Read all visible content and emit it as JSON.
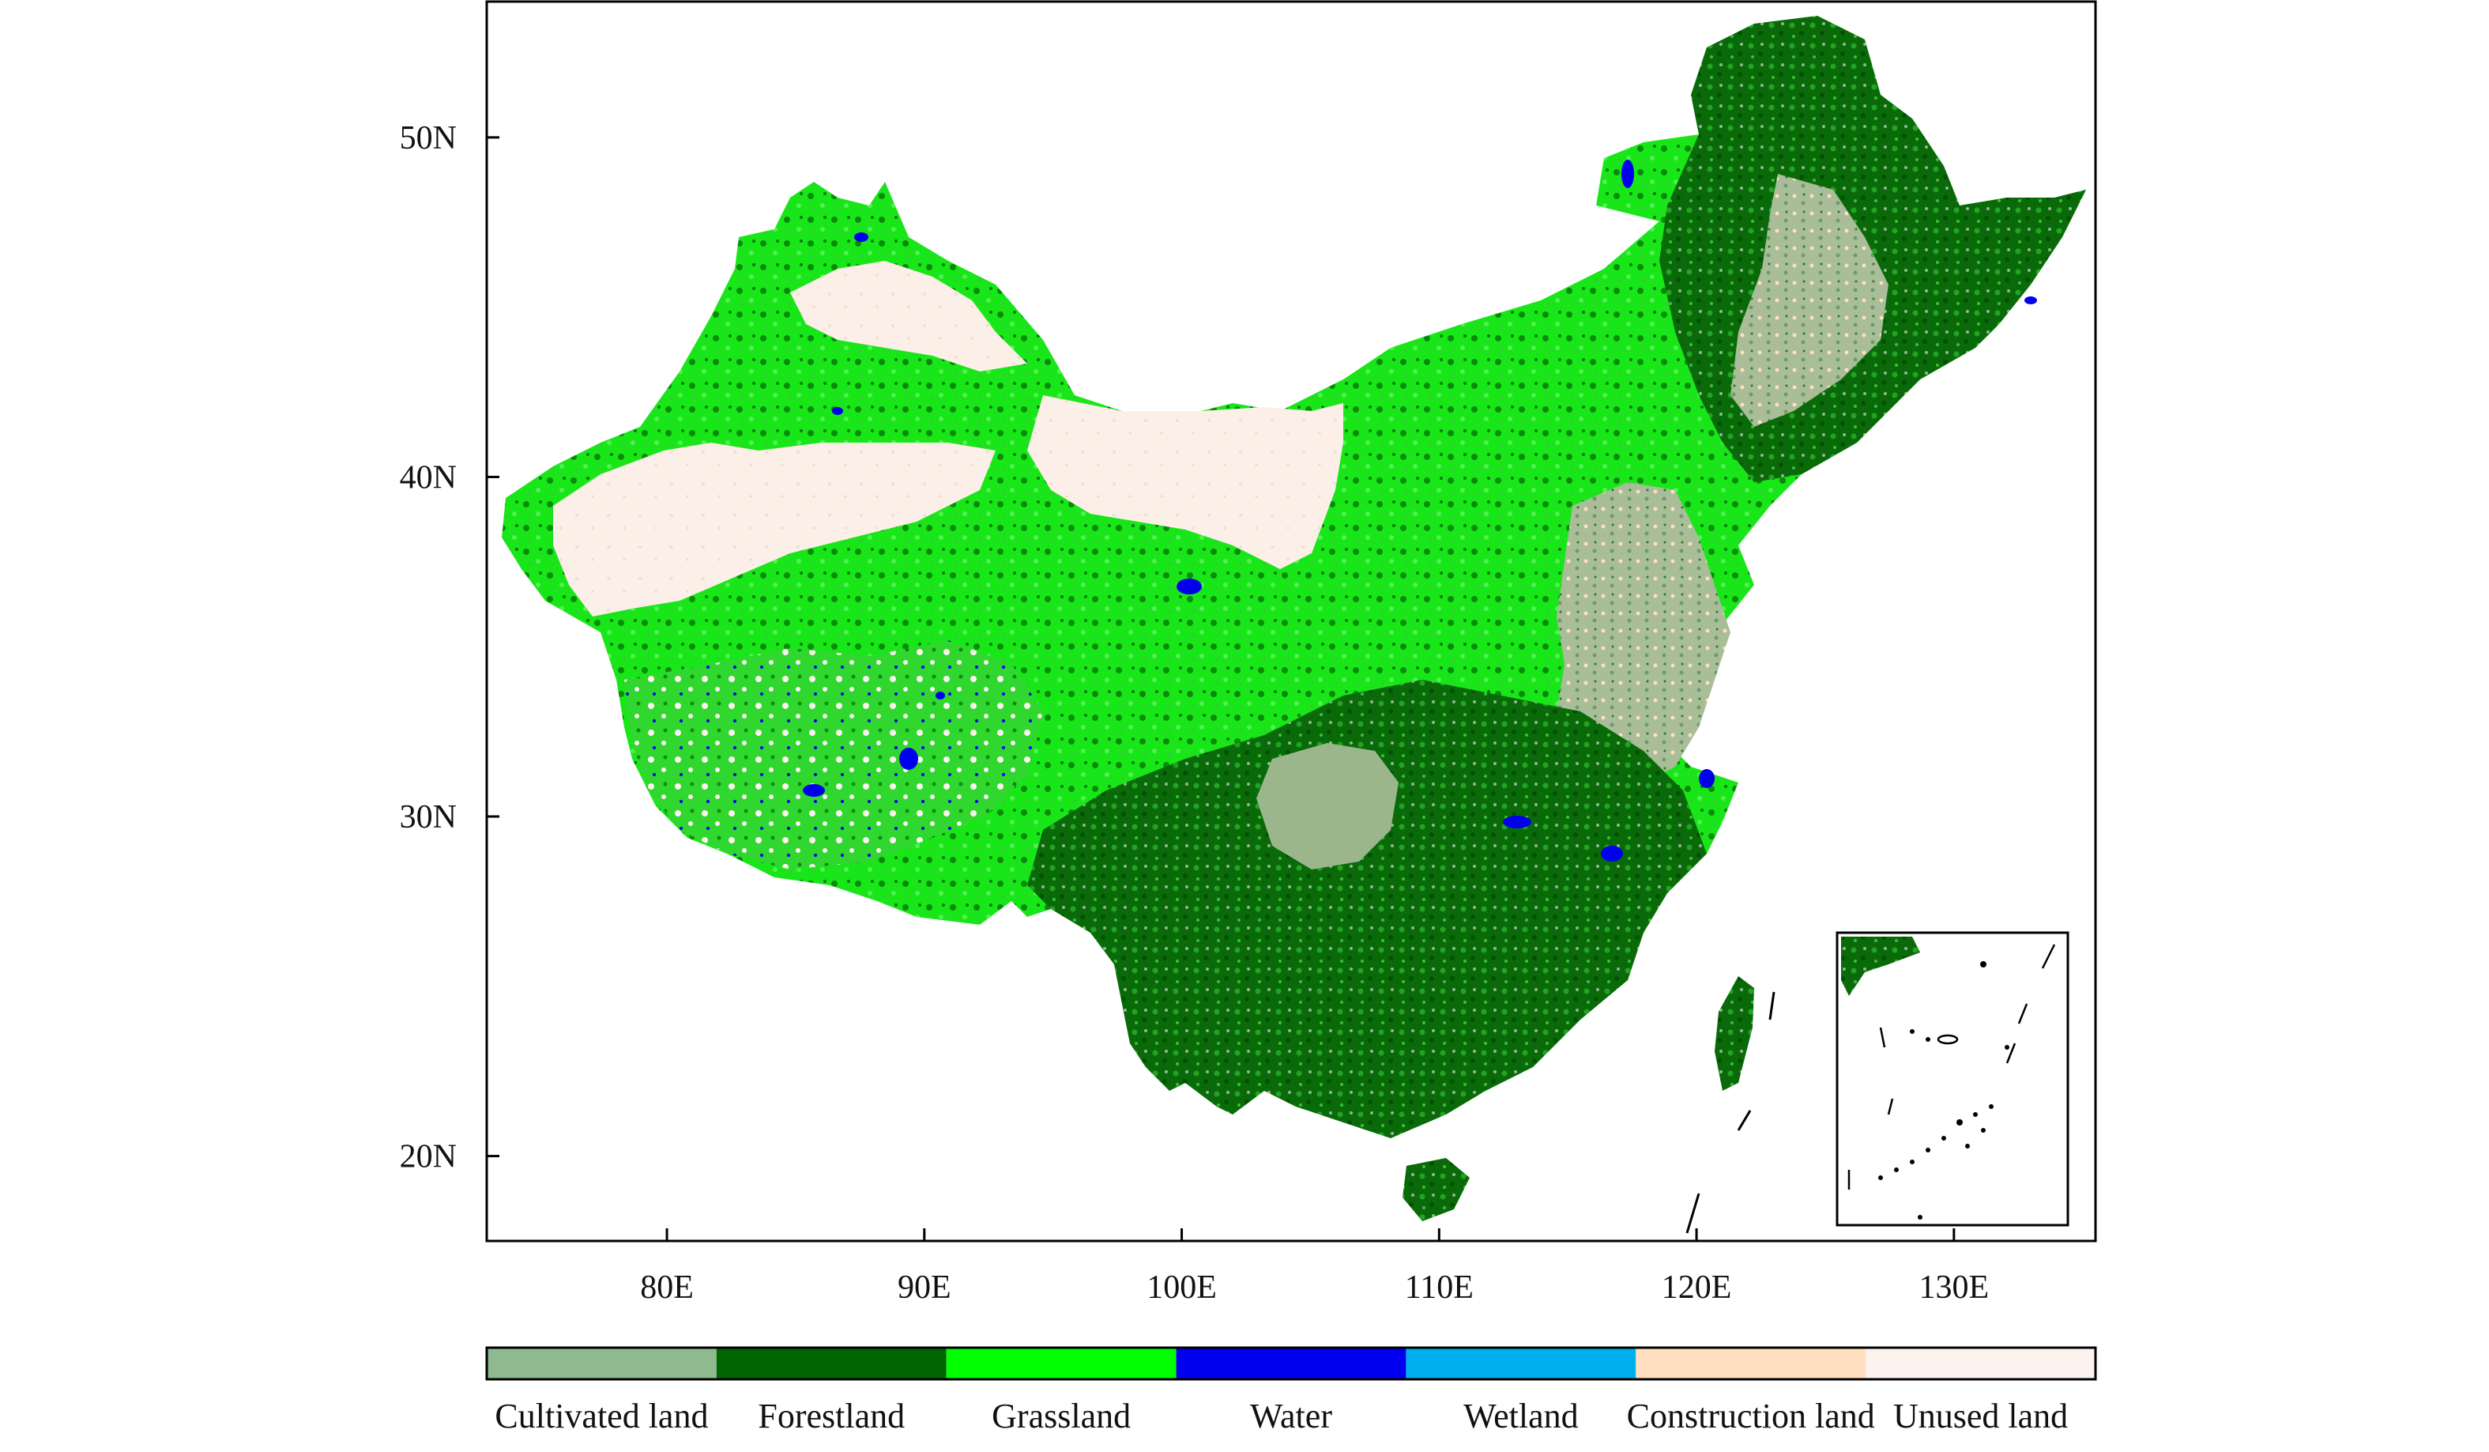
{
  "map": {
    "longitude_ticks": [
      "80E",
      "90E",
      "100E",
      "110E",
      "120E",
      "130E"
    ],
    "latitude_ticks": [
      "50N",
      "40N",
      "30N",
      "20N"
    ],
    "extent": {
      "lon_range": [
        73,
        135.5
      ],
      "lat_range": [
        17.5,
        54
      ]
    },
    "inset": "South China Sea islands"
  },
  "legend": {
    "classes": [
      {
        "label": "Cultivated land",
        "color": "#8fb98f"
      },
      {
        "label": "Forestland",
        "color": "#006400"
      },
      {
        "label": "Grassland",
        "color": "#00ff00"
      },
      {
        "label": "Water",
        "color": "#0000ee"
      },
      {
        "label": "Wetland",
        "color": "#00b0ee"
      },
      {
        "label": "Construction land",
        "color": "#ffdfbf"
      },
      {
        "label": "Unused land",
        "color": "#fdf3ee"
      }
    ]
  }
}
